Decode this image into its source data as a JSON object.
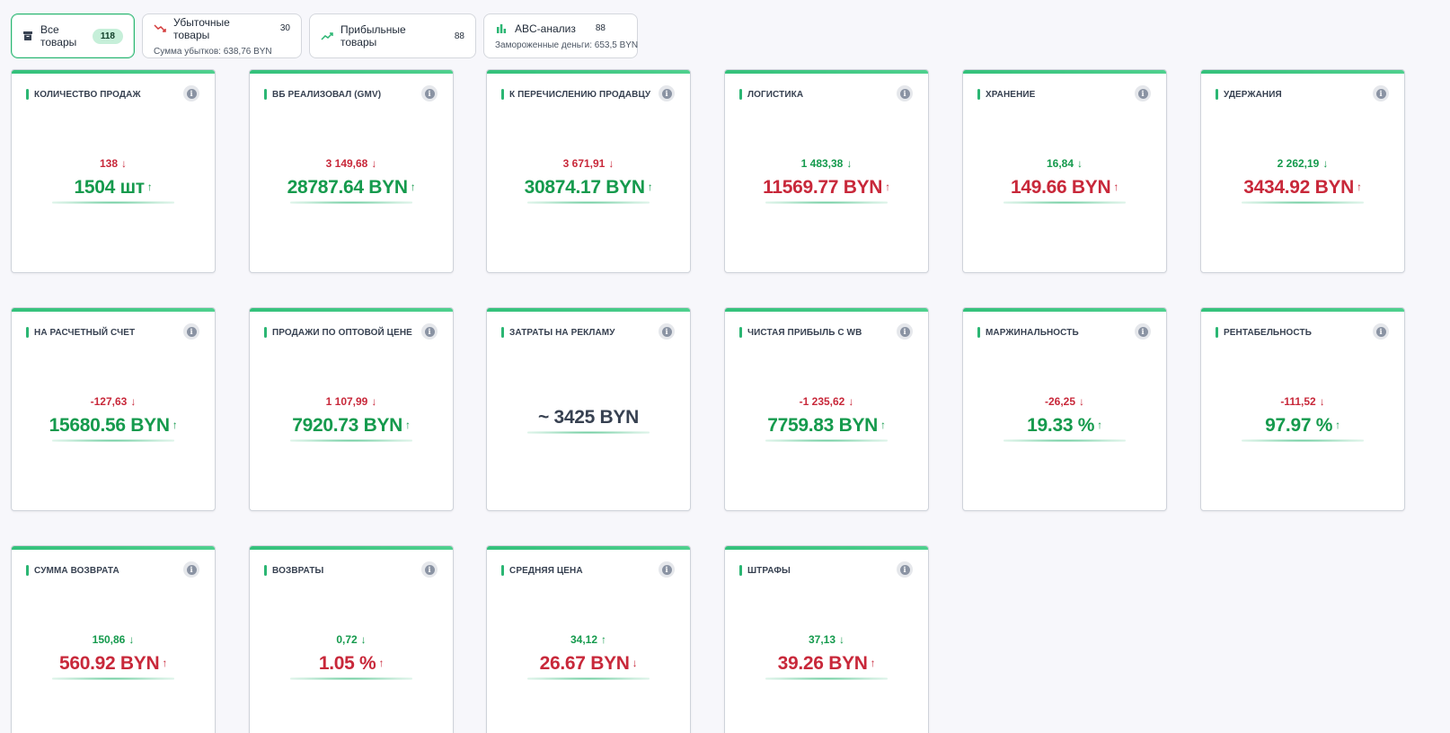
{
  "colors": {
    "accent": "#2bb673",
    "positive": "#159a4d",
    "negative": "#c8283a"
  },
  "tabs": [
    {
      "label": "Все товары",
      "count": "118",
      "icon": "archive-icon",
      "active": true
    },
    {
      "label": "Убыточные товары",
      "count": "30",
      "sub": "Сумма убытков: 638,76 BYN",
      "icon": "trending-down-icon"
    },
    {
      "label": "Прибыльные товары",
      "count": "88",
      "icon": "trending-up-icon"
    },
    {
      "label": "ABC-анализ",
      "count": "88",
      "sub": "Замороженные деньги: 653,5 BYN",
      "icon": "bar-chart-icon"
    }
  ],
  "info_icon_glyph": "i",
  "cards": [
    {
      "title": "КОЛИЧЕСТВО ПРОДАЖ",
      "delta": "138",
      "delta_color": "red",
      "delta_dir": "down",
      "value": "1504 шт",
      "value_color": "green",
      "value_dir": "up"
    },
    {
      "title": "ВБ РЕАЛИЗОВАЛ (GMV)",
      "delta": "3 149,68",
      "delta_color": "red",
      "delta_dir": "down",
      "value": "28787.64 BYN",
      "value_color": "green",
      "value_dir": "up"
    },
    {
      "title": "К ПЕРЕЧИСЛЕНИЮ ПРОДАВЦУ",
      "delta": "3 671,91",
      "delta_color": "red",
      "delta_dir": "down",
      "value": "30874.17 BYN",
      "value_color": "green",
      "value_dir": "up"
    },
    {
      "title": "ЛОГИСТИКА",
      "delta": "1 483,38",
      "delta_color": "green",
      "delta_dir": "down",
      "value": "11569.77 BYN",
      "value_color": "red",
      "value_dir": "up"
    },
    {
      "title": "ХРАНЕНИЕ",
      "delta": "16,84",
      "delta_color": "green",
      "delta_dir": "down",
      "value": "149.66 BYN",
      "value_color": "red",
      "value_dir": "up"
    },
    {
      "title": "УДЕРЖАНИЯ",
      "delta": "2 262,19",
      "delta_color": "green",
      "delta_dir": "down",
      "value": "3434.92 BYN",
      "value_color": "red",
      "value_dir": "up"
    },
    {
      "title": "НА РАСЧЕТНЫЙ СЧЕТ",
      "delta": "-127,63",
      "delta_color": "red",
      "delta_dir": "down",
      "value": "15680.56 BYN",
      "value_color": "green",
      "value_dir": "up"
    },
    {
      "title": "ПРОДАЖИ ПО ОПТОВОЙ ЦЕНЕ",
      "delta": "1 107,99",
      "delta_color": "red",
      "delta_dir": "down",
      "value": "7920.73 BYN",
      "value_color": "green",
      "value_dir": "up"
    },
    {
      "title": "ЗАТРАТЫ НА РЕКЛАМУ",
      "value": "~ 3425 BYN",
      "value_color": "dark"
    },
    {
      "title": "ЧИСТАЯ ПРИБЫЛЬ С WB",
      "delta": "-1 235,62",
      "delta_color": "red",
      "delta_dir": "down",
      "value": "7759.83 BYN",
      "value_color": "green",
      "value_dir": "up"
    },
    {
      "title": "МАРЖИНАЛЬНОСТЬ",
      "delta": "-26,25",
      "delta_color": "red",
      "delta_dir": "down",
      "value": "19.33 %",
      "value_color": "green",
      "value_dir": "up"
    },
    {
      "title": "РЕНТАБЕЛЬНОСТЬ",
      "delta": "-111,52",
      "delta_color": "red",
      "delta_dir": "down",
      "value": "97.97 %",
      "value_color": "green",
      "value_dir": "up"
    },
    {
      "title": "СУММА ВОЗВРАТА",
      "delta": "150,86",
      "delta_color": "green",
      "delta_dir": "down",
      "value": "560.92 BYN",
      "value_color": "red",
      "value_dir": "up"
    },
    {
      "title": "ВОЗВРАТЫ",
      "delta": "0,72",
      "delta_color": "green",
      "delta_dir": "down",
      "value": "1.05 %",
      "value_color": "red",
      "value_dir": "up"
    },
    {
      "title": "СРЕДНЯЯ ЦЕНА",
      "delta": "34,12",
      "delta_color": "green",
      "delta_dir": "up",
      "value": "26.67 BYN",
      "value_color": "red",
      "value_dir": "down"
    },
    {
      "title": "ШТРАФЫ",
      "delta": "37,13",
      "delta_color": "green",
      "delta_dir": "down",
      "value": "39.26 BYN",
      "value_color": "red",
      "value_dir": "up"
    }
  ]
}
